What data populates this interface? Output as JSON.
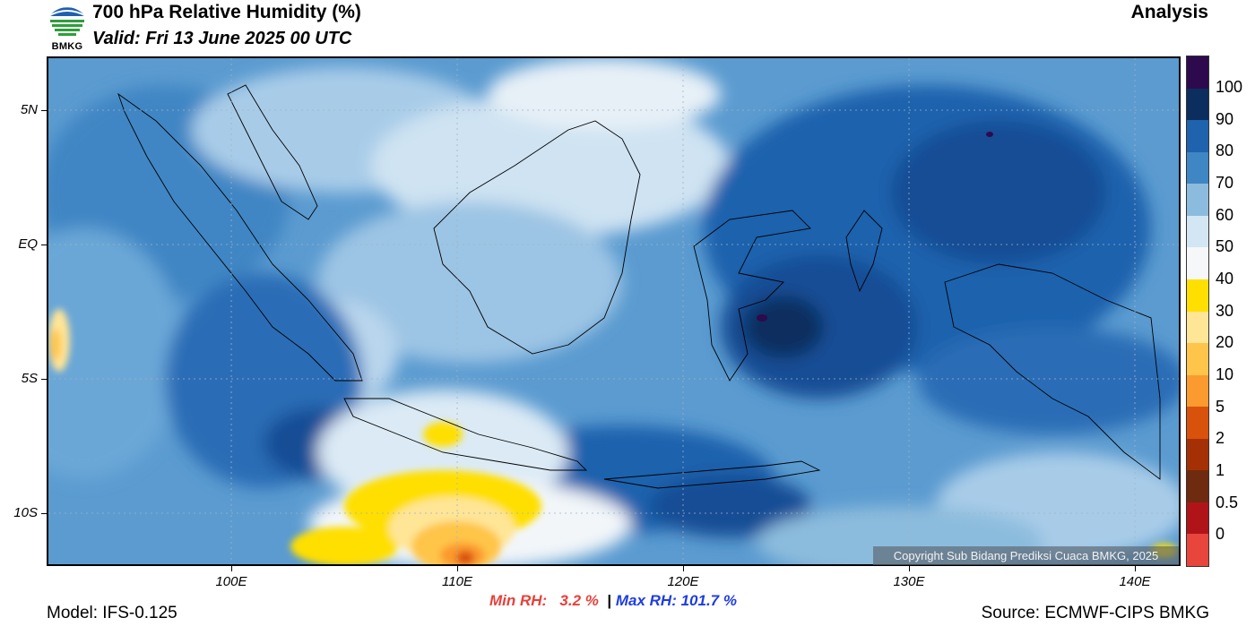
{
  "header": {
    "title": "700 hPa Relative Humidity (%)",
    "valid": "Valid: Fri 13 June 2025 00 UTC",
    "product": "Analysis",
    "logo_text": "BMKG"
  },
  "map": {
    "lat_labels": [
      "5N",
      "EQ",
      "5S",
      "10S"
    ],
    "lon_labels": [
      "100E",
      "110E",
      "120E",
      "130E",
      "140E"
    ],
    "copyright": "Copyright Sub Bidang Prediksi Cuaca BMKG, 2025"
  },
  "colorbar": {
    "labels": [
      "100",
      "90",
      "80",
      "70",
      "60",
      "50",
      "40",
      "30",
      "20",
      "10",
      "5",
      "2",
      "1",
      "0.5",
      "0"
    ],
    "colors": [
      "#2d0a4e",
      "#0b2e5e",
      "#1f62ad",
      "#3f86c4",
      "#8cbcdd",
      "#d2e6f3",
      "#f5f7f8",
      "#ffdf00",
      "#ffe596",
      "#ffc54a",
      "#fb9a2e",
      "#d9520b",
      "#a53005",
      "#6e2b0f",
      "#b01418",
      "#e8453c"
    ]
  },
  "stats": {
    "min_label": "Min RH:",
    "min_value": "3.2 %",
    "separator": "|",
    "max_label": "Max RH:",
    "max_value": "101.7 %",
    "min_color": "#e8403a",
    "max_color": "#1f3de0"
  },
  "footer": {
    "model": "Model: IFS-0.125",
    "source": "Source: ECMWF-CIPS BMKG"
  }
}
